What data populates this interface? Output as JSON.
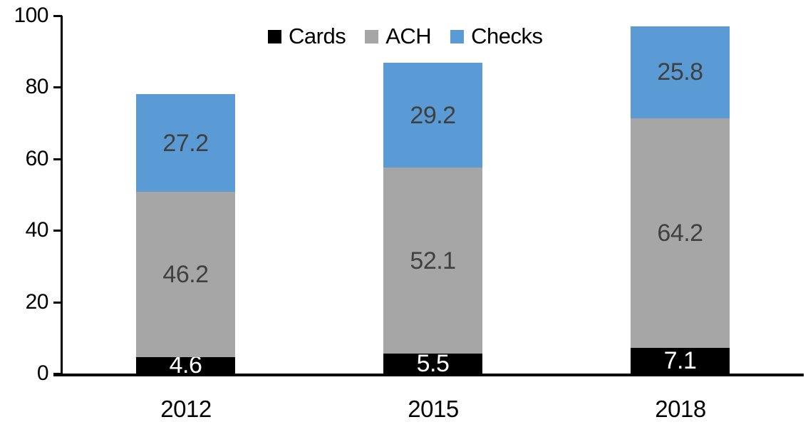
{
  "chart_data": {
    "type": "bar",
    "stacked": true,
    "title": "",
    "xlabel": "",
    "ylabel": "",
    "categories": [
      "2012",
      "2015",
      "2018"
    ],
    "series": [
      {
        "name": "Cards",
        "color": "#000000",
        "label_color": "#ffffff",
        "values": [
          4.6,
          5.5,
          7.1
        ]
      },
      {
        "name": "ACH",
        "color": "#a6a6a6",
        "label_color": "#404040",
        "values": [
          46.2,
          52.1,
          64.2
        ]
      },
      {
        "name": "Checks",
        "color": "#5b9bd5",
        "label_color": "#404040",
        "values": [
          27.2,
          29.2,
          25.8
        ]
      }
    ],
    "totals": [
      78.0,
      86.8,
      97.1
    ],
    "y_axis": {
      "min": 0,
      "max": 100,
      "ticks": [
        "0",
        "20",
        "40",
        "60",
        "80",
        "100"
      ]
    },
    "legend": {
      "position": "top-center",
      "entries": [
        "Cards",
        "ACH",
        "Checks"
      ]
    },
    "grid": "off",
    "colors": {
      "axis": "#000000",
      "background": "#ffffff"
    }
  }
}
